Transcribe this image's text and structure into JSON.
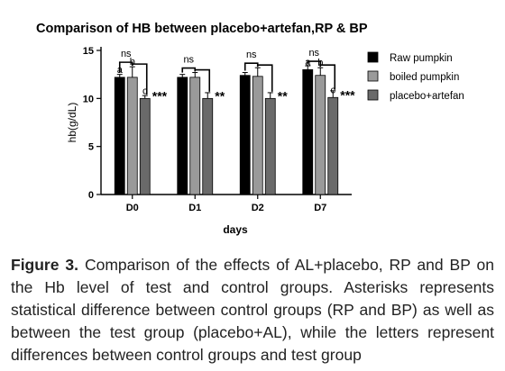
{
  "chart_data": {
    "type": "bar",
    "title": "Comparison of HB between placebo+artefan,RP & BP",
    "xlabel": "days",
    "ylabel": "hb(g/dL)",
    "ylim": [
      0,
      15
    ],
    "yticks": [
      "0",
      "5",
      "10",
      "15"
    ],
    "categories": [
      "D0",
      "D1",
      "D2",
      "D7"
    ],
    "legend_position": "right",
    "series": [
      {
        "name": "Raw pumpkin",
        "color": "#000000",
        "values": [
          12.2,
          12.2,
          12.4,
          13.0
        ],
        "errors": [
          0.3,
          0.3,
          0.3,
          0.4
        ]
      },
      {
        "name": "boiled pumpkin",
        "color": "#9a9a9a",
        "values": [
          12.2,
          12.2,
          12.3,
          12.4
        ],
        "errors": [
          1.1,
          0.5,
          0.9,
          0.8
        ]
      },
      {
        "name": "placebo+artefan",
        "color": "#6a6a6a",
        "values": [
          10.0,
          10.0,
          10.0,
          10.1
        ],
        "errors": [
          0.3,
          0.6,
          0.6,
          0.7
        ]
      }
    ],
    "annotations": {
      "ns": "ns",
      "letters": [
        "a",
        "b",
        "c"
      ],
      "stars": [
        "***",
        "**",
        "**",
        "***"
      ]
    }
  },
  "caption": {
    "lead": "Figure 3.",
    "text": "Comparison of the effects of AL+placebo, RP and BP on the Hb level of test and control groups. Asterisks represents statistical difference between control groups (RP and BP) as well as between the test group (placebo+AL), while the letters represent differences between control groups and test group"
  }
}
